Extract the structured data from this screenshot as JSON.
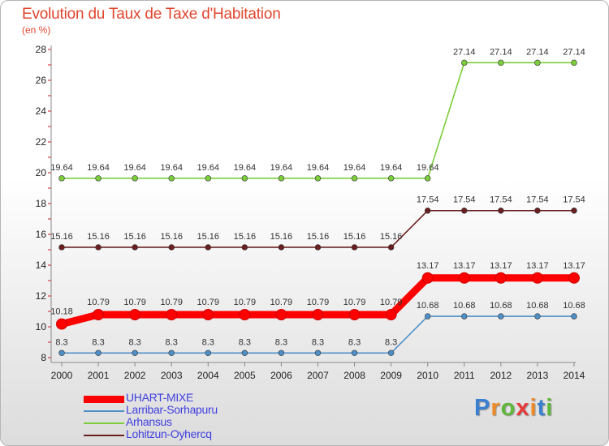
{
  "header": {
    "title": "Evolution du Taux de Taxe d'Habitation",
    "subtitle": "(en %)"
  },
  "brand": {
    "text": "Proxiti"
  },
  "chart_data": {
    "type": "line",
    "title": "Evolution du Taux de Taxe d'Habitation",
    "subtitle": "(en %)",
    "xlabel": "",
    "ylabel": "",
    "x": [
      "2000",
      "2001",
      "2002",
      "2003",
      "2004",
      "2005",
      "2006",
      "2007",
      "2008",
      "2009",
      "2010",
      "2011",
      "2012",
      "2013",
      "2014"
    ],
    "ylim": [
      8,
      28
    ],
    "yticks": [
      8,
      10,
      12,
      14,
      16,
      18,
      20,
      22,
      24,
      26,
      28
    ],
    "grid": false,
    "legend_position": "bottom-left",
    "series": [
      {
        "name": "UHART-MIXE",
        "color": "#ff0000",
        "values": [
          10.18,
          10.79,
          10.79,
          10.79,
          10.79,
          10.79,
          10.79,
          10.79,
          10.79,
          10.79,
          13.17,
          13.17,
          13.17,
          13.17,
          13.17
        ],
        "labels": [
          "10.18",
          "10.79",
          "10.79",
          "10.79",
          "10.79",
          "10.79",
          "10.79",
          "10.79",
          "10.79",
          "10.79",
          "13.17",
          "13.17",
          "13.17",
          "13.17",
          "13.17"
        ]
      },
      {
        "name": "Larribar-Sorhapuru",
        "color": "#4f8fc8",
        "values": [
          8.3,
          8.3,
          8.3,
          8.3,
          8.3,
          8.3,
          8.3,
          8.3,
          8.3,
          8.3,
          10.68,
          10.68,
          10.68,
          10.68,
          10.68
        ],
        "labels": [
          "8.3",
          "8.3",
          "8.3",
          "8.3",
          "8.3",
          "8.3",
          "8.3",
          "8.3",
          "8.3",
          "8.3",
          "10.68",
          "10.68",
          "10.68",
          "10.68",
          "10.68"
        ]
      },
      {
        "name": "Arhansus",
        "color": "#7ccd3c",
        "values": [
          19.64,
          19.64,
          19.64,
          19.64,
          19.64,
          19.64,
          19.64,
          19.64,
          19.64,
          19.64,
          19.64,
          27.14,
          27.14,
          27.14,
          27.14
        ],
        "labels": [
          "19.64",
          "19.64",
          "19.64",
          "19.64",
          "19.64",
          "19.64",
          "19.64",
          "19.64",
          "19.64",
          "19.64",
          "19.64",
          "27.14",
          "27.14",
          "27.14",
          "27.14"
        ]
      },
      {
        "name": "Lohitzun-Oyhercq",
        "color": "#6b1f1f",
        "values": [
          15.16,
          15.16,
          15.16,
          15.16,
          15.16,
          15.16,
          15.16,
          15.16,
          15.16,
          15.16,
          17.54,
          17.54,
          17.54,
          17.54,
          17.54
        ],
        "labels": [
          "15.16",
          "15.16",
          "15.16",
          "15.16",
          "15.16",
          "15.16",
          "15.16",
          "15.16",
          "15.16",
          "15.16",
          "17.54",
          "17.54",
          "17.54",
          "17.54",
          "17.54"
        ]
      }
    ]
  }
}
